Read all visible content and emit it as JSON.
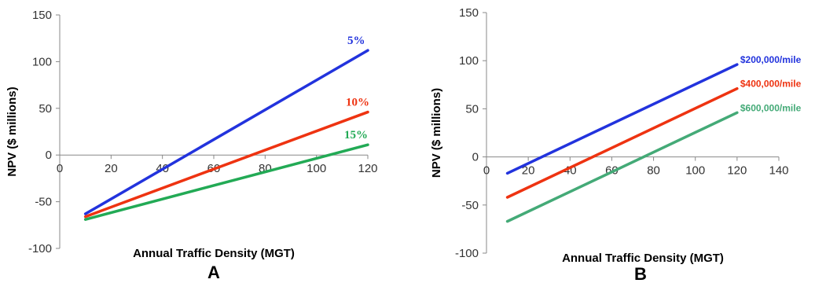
{
  "chart_data": [
    {
      "type": "line",
      "panel_label": "A",
      "title": "",
      "xlabel": "Annual Traffic Density (MGT)",
      "ylabel": "NPV ($ millions)",
      "xlim": [
        0,
        120
      ],
      "ylim": [
        -100,
        150
      ],
      "xticks": [
        0,
        20,
        40,
        60,
        80,
        100,
        120
      ],
      "yticks": [
        -100,
        -50,
        0,
        50,
        100,
        150
      ],
      "grid": false,
      "series": [
        {
          "name": "5%",
          "color": "#2233dd",
          "x": [
            10,
            120
          ],
          "y": [
            -63,
            112
          ]
        },
        {
          "name": "10%",
          "color": "#ee3311",
          "x": [
            10,
            120
          ],
          "y": [
            -66,
            46
          ]
        },
        {
          "name": "15%",
          "color": "#22aa55",
          "x": [
            10,
            120
          ],
          "y": [
            -69,
            11
          ]
        }
      ]
    },
    {
      "type": "line",
      "panel_label": "B",
      "title": "",
      "xlabel": "Annual Traffic Density (MGT)",
      "ylabel": "NPV ($ millions)",
      "xlim": [
        0,
        140
      ],
      "ylim": [
        -100,
        150
      ],
      "xticks": [
        0,
        20,
        40,
        60,
        80,
        100,
        120,
        140
      ],
      "yticks": [
        -100,
        -50,
        0,
        50,
        100,
        150
      ],
      "grid": false,
      "series": [
        {
          "name": "$200,000/mile",
          "color": "#2233dd",
          "x": [
            10,
            120
          ],
          "y": [
            -17,
            96
          ]
        },
        {
          "name": "$400,000/mile",
          "color": "#ee3311",
          "x": [
            10,
            120
          ],
          "y": [
            -42,
            71
          ]
        },
        {
          "name": "$600,000/mile",
          "color": "#44aa77",
          "x": [
            10,
            120
          ],
          "y": [
            -67,
            46
          ]
        }
      ]
    }
  ]
}
